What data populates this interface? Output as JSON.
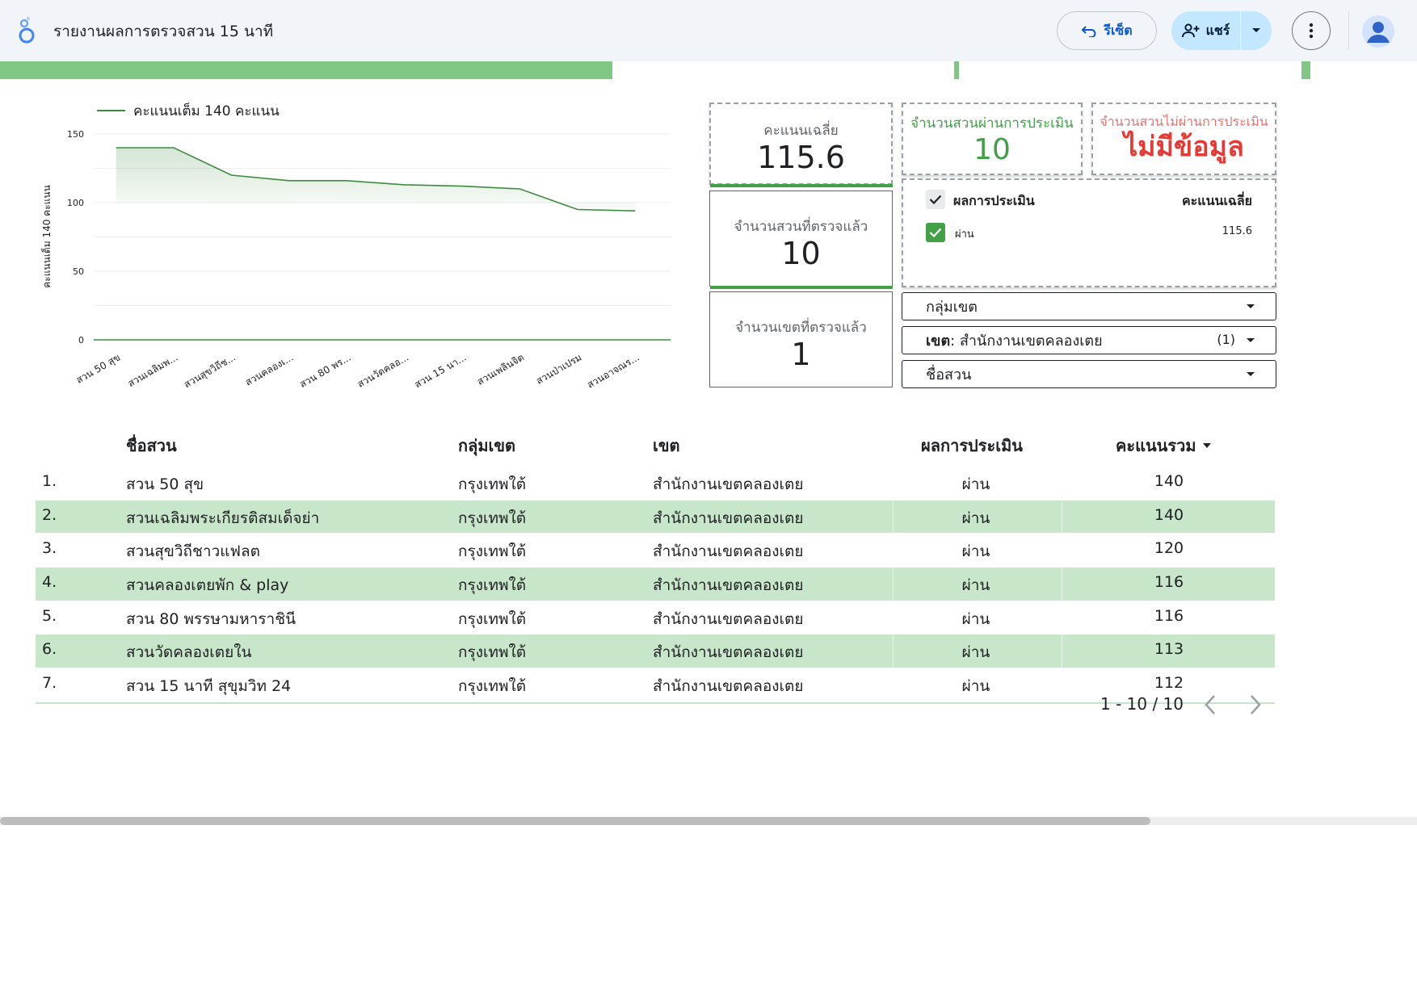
{
  "header": {
    "title": "รายงานผลการตรวจสวน 15 นาที",
    "reset_label": "รีเซ็ต",
    "share_label": "แชร์"
  },
  "colors": {
    "accent_green": "#81c784",
    "row_green": "#c8e6c9",
    "pass_green": "#43a047",
    "fail_red": "#e53935",
    "line_green": "#3d8b40"
  },
  "chart_data": {
    "type": "area",
    "legend": "คะแนนเต็ม 140 คะแนน",
    "ylabel": "คะแนนเต็ม 140 คะแนน",
    "ylim": [
      0,
      150
    ],
    "yticks": [
      0,
      50,
      100,
      150
    ],
    "categories": [
      "สวน 50 สุข",
      "สวนเฉลิมพ...",
      "สวนสุขวิถีช...",
      "สวนคลองเ...",
      "สวน 80 พร...",
      "สวนวัดคลอ...",
      "สวน 15 นา...",
      "สวนเพลินจิต",
      "สวนป่าเปรม",
      "สวนอาจณร..."
    ],
    "series": [
      {
        "name": "คะแนนเต็ม 140 คะแนน",
        "values": [
          140,
          140,
          120,
          116,
          116,
          113,
          112,
          110,
          95,
          94
        ]
      }
    ]
  },
  "scorecards": {
    "avg": {
      "label": "คะแนนเฉลี่ย",
      "value": "115.6"
    },
    "pass": {
      "label": "จำนวนสวนผ่านการประเมิน",
      "value": "10"
    },
    "fail": {
      "label": "จำนวนสวนไม่ผ่านการประเมิน",
      "value": "ไม่มีข้อมูล"
    },
    "checked": {
      "label": "จำนวนสวนที่ตรวจแล้ว",
      "value": "10"
    },
    "districts": {
      "label": "จำนวนเขตที่ตรวจแล้ว",
      "value": "1"
    }
  },
  "result_filter": {
    "header_label": "ผลการประเมิน",
    "header_value": "คะแนนเฉลี่ย",
    "items": [
      {
        "label": "ผ่าน",
        "value": "115.6"
      }
    ]
  },
  "filters": {
    "group": "กลุ่มเขต",
    "district_key": "เขต",
    "district_value": ": สำนักงานเขตคลองเตย",
    "district_count": "(1)",
    "park": "ชื่อสวน"
  },
  "table": {
    "columns": [
      "ชื่อสวน",
      "กลุ่มเขต",
      "เขต",
      "ผลการประเมิน",
      "คะแนนรวม"
    ],
    "rows": [
      [
        "1.",
        "สวน 50 สุข",
        "กรุงเทพใต้",
        "สำนักงานเขตคลองเตย",
        "ผ่าน",
        "140"
      ],
      [
        "2.",
        "สวนเฉลิมพระเกียรติสมเด็จย่า",
        "กรุงเทพใต้",
        "สำนักงานเขตคลองเตย",
        "ผ่าน",
        "140"
      ],
      [
        "3.",
        "สวนสุขวิถีชาวแฟลต",
        "กรุงเทพใต้",
        "สำนักงานเขตคลองเตย",
        "ผ่าน",
        "120"
      ],
      [
        "4.",
        "สวนคลองเตยพัก & play",
        "กรุงเทพใต้",
        "สำนักงานเขตคลองเตย",
        "ผ่าน",
        "116"
      ],
      [
        "5.",
        "สวน 80 พรรษามหาราชินี",
        "กรุงเทพใต้",
        "สำนักงานเขตคลองเตย",
        "ผ่าน",
        "116"
      ],
      [
        "6.",
        "สวนวัดคลองเตยใน",
        "กรุงเทพใต้",
        "สำนักงานเขตคลองเตย",
        "ผ่าน",
        "113"
      ],
      [
        "7.",
        "สวน 15 นาที สุขุมวิท 24",
        "กรุงเทพใต้",
        "สำนักงานเขตคลองเตย",
        "ผ่าน",
        "112"
      ]
    ],
    "pagination": "1 - 10 / 10"
  }
}
